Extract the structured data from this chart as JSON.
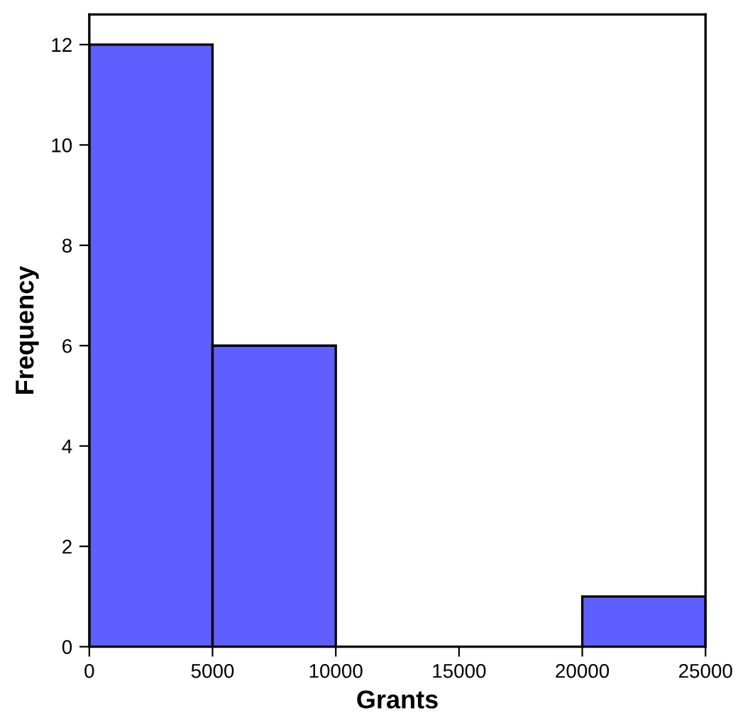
{
  "chart_data": {
    "type": "histogram",
    "xlabel": "Grants",
    "ylabel": "Frequency",
    "bins": [
      0,
      5000,
      10000,
      15000,
      20000,
      25000
    ],
    "values": [
      12,
      6,
      0,
      0,
      1
    ],
    "color": "#5f5fff",
    "xlim": [
      0,
      25000
    ],
    "xticks": [
      0,
      5000,
      10000,
      15000,
      20000,
      25000
    ],
    "ylim": [
      0,
      12.6
    ],
    "yticks": [
      0,
      2,
      4,
      6,
      8,
      10,
      12
    ],
    "grid": false
  }
}
